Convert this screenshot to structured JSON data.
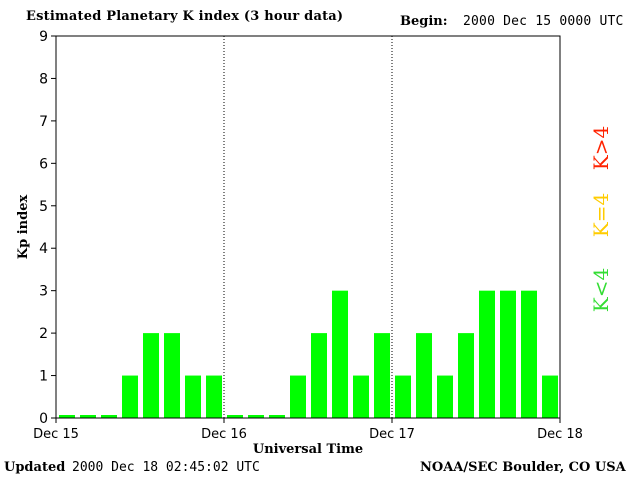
{
  "header": {
    "title": "Estimated Planetary K index (3 hour data)",
    "begin_label": "Begin:",
    "begin_value": "2000 Dec 15 0000 UTC"
  },
  "footer": {
    "updated_label": "Updated",
    "updated_value": "2000 Dec 18 02:45:02 UTC",
    "source": "NOAA/SEC Boulder, CO USA"
  },
  "colors": {
    "bar_low": "#00ff00",
    "legend_low": "#33dd33",
    "legend_mid": "#ffcc00",
    "legend_high": "#ff2200",
    "axis": "#000000"
  },
  "legend": [
    {
      "label": "K<4",
      "color": "#33dd33"
    },
    {
      "label": "K=4",
      "color": "#ffcc00"
    },
    {
      "label": "K>4",
      "color": "#ff2200"
    }
  ],
  "chart_data": {
    "type": "bar",
    "title": "Estimated Planetary K index (3 hour data)",
    "xlabel": "Universal Time",
    "ylabel": "Kp index",
    "ylim": [
      0,
      9
    ],
    "yticks": [
      "0",
      "1",
      "2",
      "3",
      "4",
      "5",
      "6",
      "7",
      "8",
      "9"
    ],
    "xticks": [
      "Dec 15",
      "Dec 16",
      "Dec 17",
      "Dec 18"
    ],
    "interval_hours": 3,
    "day_separators": "dotted",
    "values": [
      0,
      0,
      0,
      1,
      2,
      2,
      1,
      1,
      0,
      0,
      0,
      1,
      2,
      3,
      1,
      2,
      1,
      2,
      1,
      2,
      3,
      3,
      3,
      1
    ],
    "series": [
      {
        "name": "Kp",
        "values": [
          0,
          0,
          0,
          1,
          2,
          2,
          1,
          1,
          0,
          0,
          0,
          1,
          2,
          3,
          1,
          2,
          1,
          2,
          1,
          2,
          3,
          3,
          3,
          1
        ]
      }
    ]
  }
}
